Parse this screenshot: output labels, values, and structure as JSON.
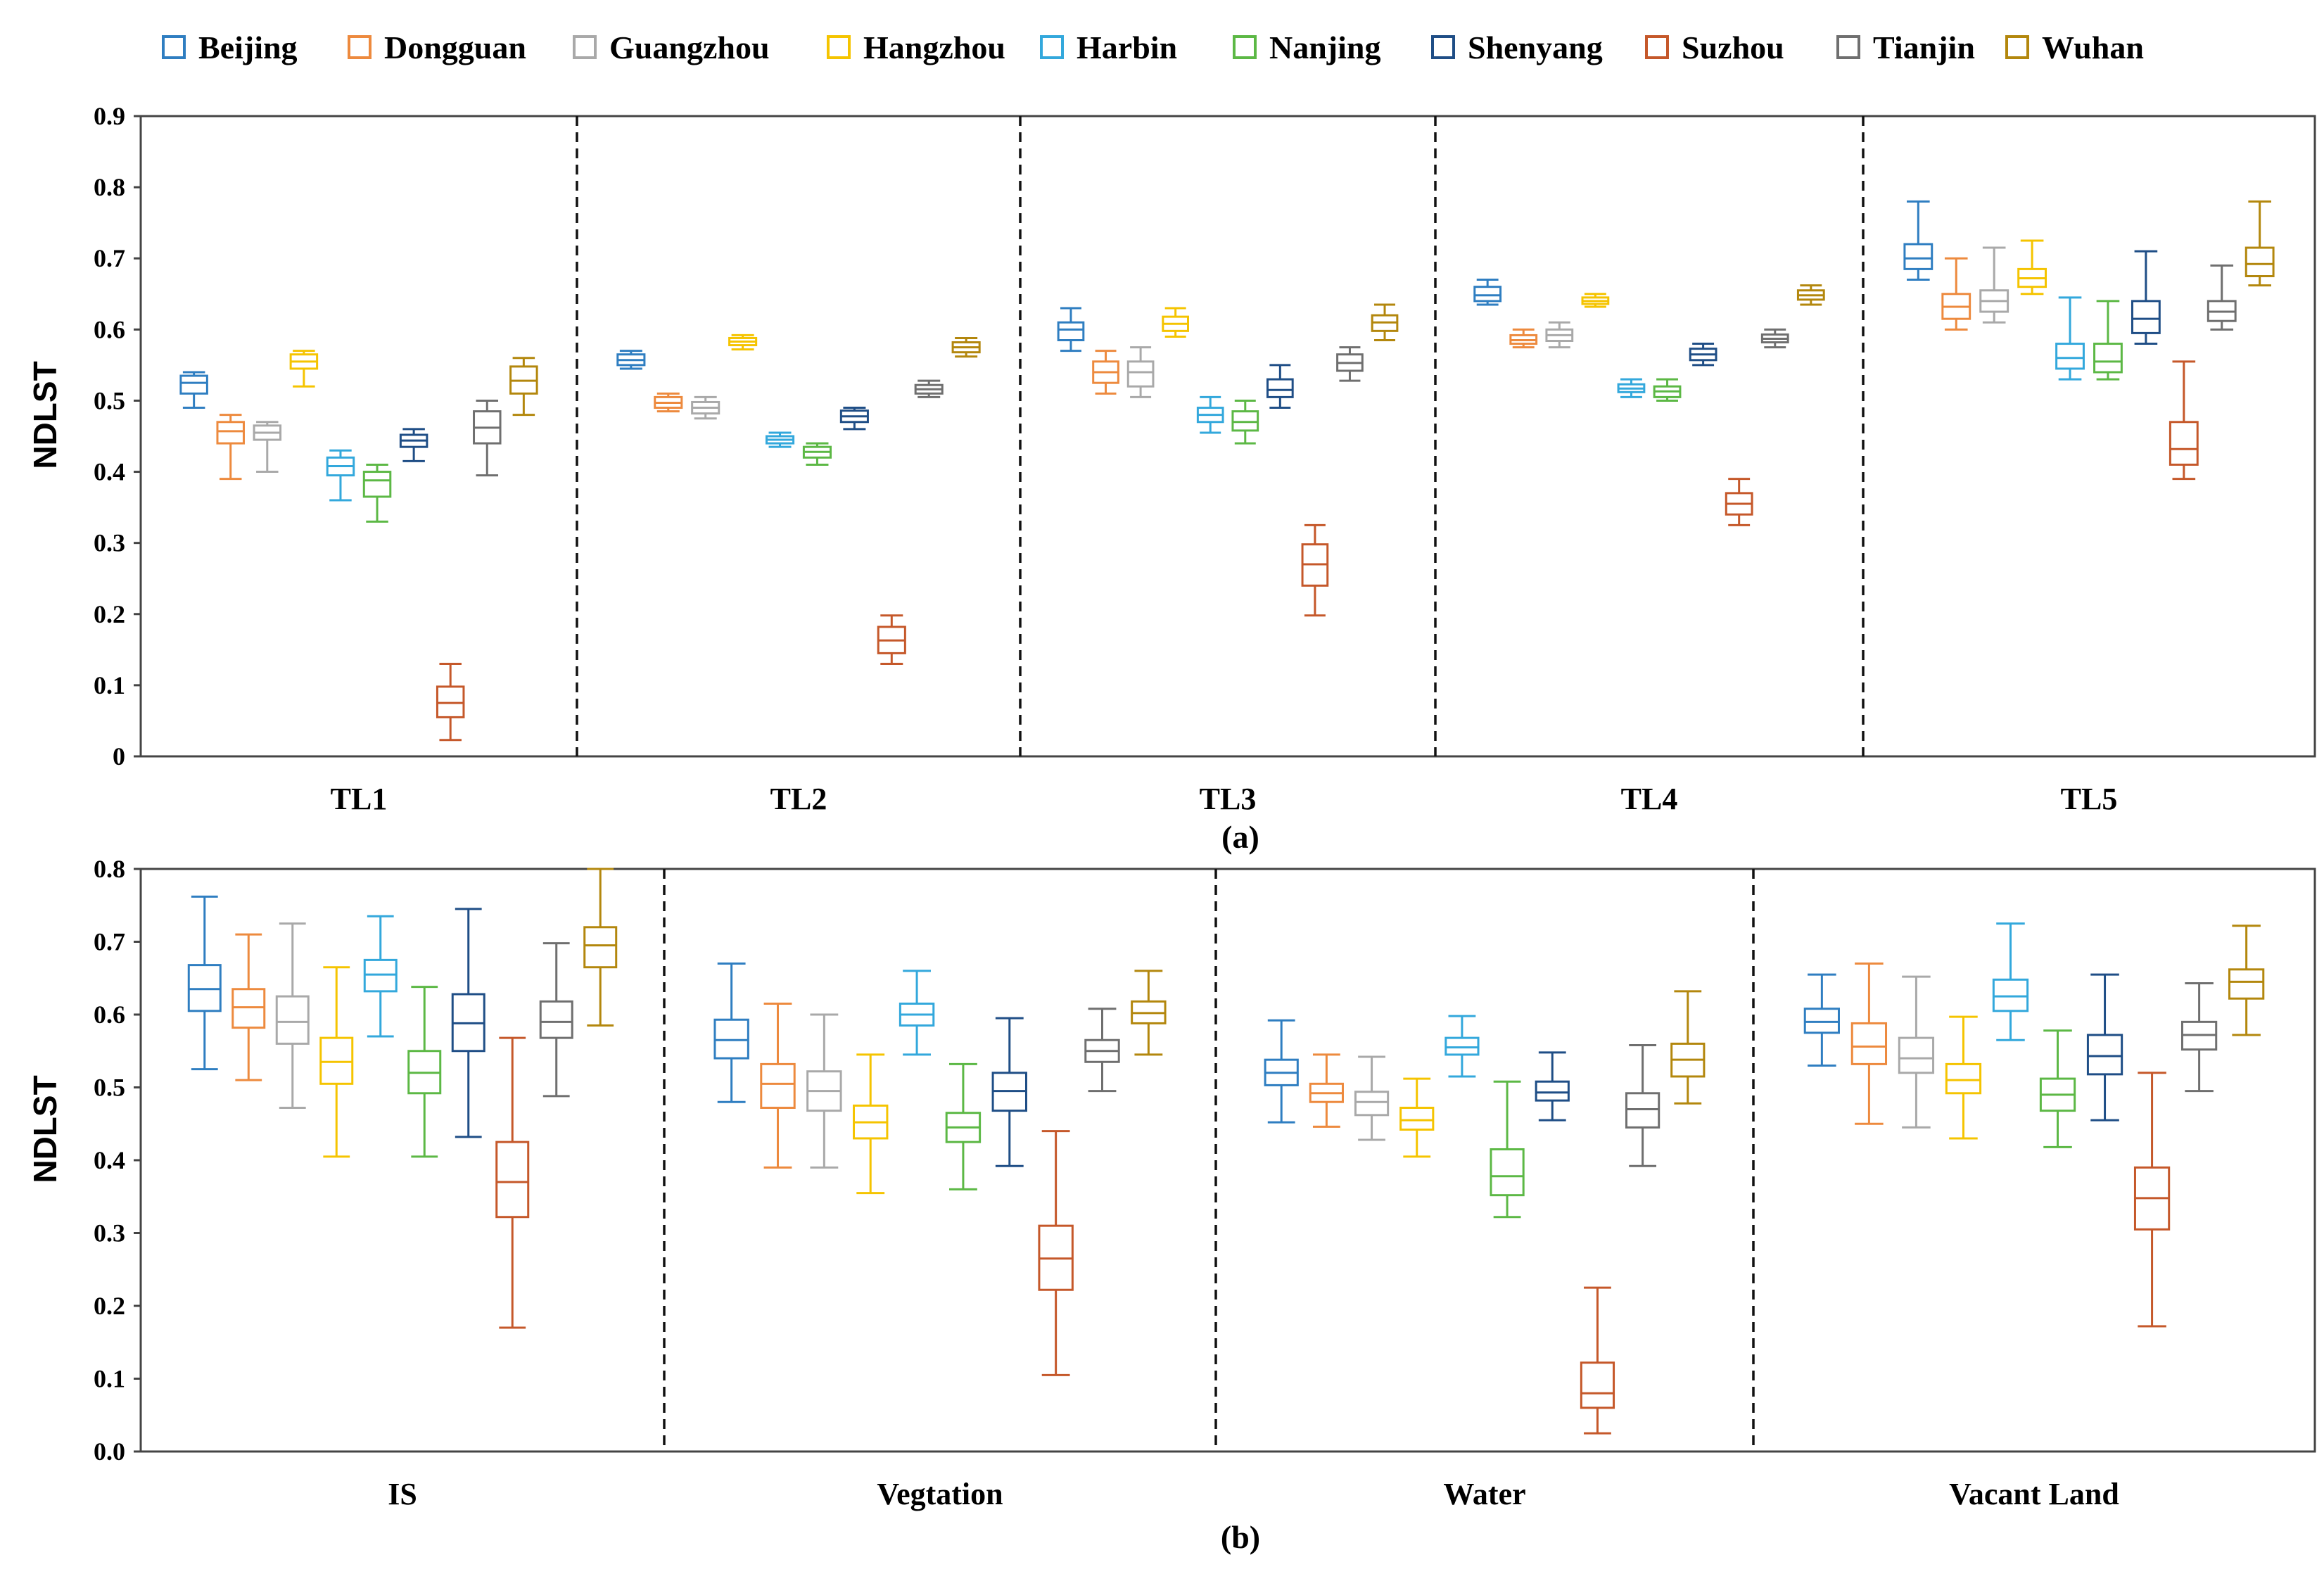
{
  "legend": {
    "cities": [
      "Beijing",
      "Dongguan",
      "Guangzhou",
      "Hangzhou",
      "Harbin",
      "Nanjing",
      "Shenyang",
      "Suzhou",
      "Tianjin",
      "Wuhan"
    ]
  },
  "colors": {
    "Beijing": "#2f7ec1",
    "Dongguan": "#ed8a3e",
    "Guangzhou": "#a9a9a9",
    "Hangzhou": "#f5c400",
    "Harbin": "#33a8dc",
    "Nanjing": "#5cb845",
    "Shenyang": "#1f4e86",
    "Suzhou": "#c5582a",
    "Tianjin": "#6f6f6f",
    "Wuhan": "#b3870d"
  },
  "chart_data": [
    {
      "type": "box",
      "panel_label": "(a)",
      "title": "",
      "xlabel": "",
      "ylabel": "NDLST",
      "ylim": [
        0,
        0.9
      ],
      "yticks": [
        "0",
        "0.1",
        "0.2",
        "0.3",
        "0.4",
        "0.5",
        "0.6",
        "0.7",
        "0.8",
        "0.9"
      ],
      "legend_position": "top",
      "categories": [
        "TL1",
        "TL2",
        "TL3",
        "TL4",
        "TL5"
      ],
      "series": [
        {
          "name": "Beijing",
          "boxes": [
            {
              "min": 0.49,
              "q1": 0.51,
              "median": 0.525,
              "q3": 0.535,
              "max": 0.54
            },
            {
              "min": 0.545,
              "q1": 0.55,
              "median": 0.557,
              "q3": 0.565,
              "max": 0.57
            },
            {
              "min": 0.57,
              "q1": 0.585,
              "median": 0.6,
              "q3": 0.61,
              "max": 0.63
            },
            {
              "min": 0.635,
              "q1": 0.64,
              "median": 0.648,
              "q3": 0.66,
              "max": 0.67
            },
            {
              "min": 0.67,
              "q1": 0.685,
              "median": 0.7,
              "q3": 0.72,
              "max": 0.78
            }
          ]
        },
        {
          "name": "Dongguan",
          "boxes": [
            {
              "min": 0.39,
              "q1": 0.44,
              "median": 0.457,
              "q3": 0.47,
              "max": 0.48
            },
            {
              "min": 0.485,
              "q1": 0.49,
              "median": 0.497,
              "q3": 0.505,
              "max": 0.51
            },
            {
              "min": 0.51,
              "q1": 0.525,
              "median": 0.54,
              "q3": 0.555,
              "max": 0.57
            },
            {
              "min": 0.575,
              "q1": 0.58,
              "median": 0.585,
              "q3": 0.592,
              "max": 0.6
            },
            {
              "min": 0.6,
              "q1": 0.615,
              "median": 0.632,
              "q3": 0.65,
              "max": 0.7
            }
          ]
        },
        {
          "name": "Guangzhou",
          "boxes": [
            {
              "min": 0.4,
              "q1": 0.445,
              "median": 0.455,
              "q3": 0.465,
              "max": 0.47
            },
            {
              "min": 0.475,
              "q1": 0.482,
              "median": 0.49,
              "q3": 0.498,
              "max": 0.505
            },
            {
              "min": 0.505,
              "q1": 0.52,
              "median": 0.54,
              "q3": 0.555,
              "max": 0.575
            },
            {
              "min": 0.575,
              "q1": 0.584,
              "median": 0.592,
              "q3": 0.6,
              "max": 0.61
            },
            {
              "min": 0.61,
              "q1": 0.625,
              "median": 0.64,
              "q3": 0.655,
              "max": 0.715
            }
          ]
        },
        {
          "name": "Hangzhou",
          "boxes": [
            {
              "min": 0.52,
              "q1": 0.545,
              "median": 0.555,
              "q3": 0.565,
              "max": 0.57
            },
            {
              "min": 0.572,
              "q1": 0.578,
              "median": 0.583,
              "q3": 0.588,
              "max": 0.592
            },
            {
              "min": 0.59,
              "q1": 0.598,
              "median": 0.608,
              "q3": 0.618,
              "max": 0.63
            },
            {
              "min": 0.632,
              "q1": 0.636,
              "median": 0.64,
              "q3": 0.645,
              "max": 0.65
            },
            {
              "min": 0.65,
              "q1": 0.66,
              "median": 0.672,
              "q3": 0.685,
              "max": 0.725
            }
          ]
        },
        {
          "name": "Harbin",
          "boxes": [
            {
              "min": 0.36,
              "q1": 0.395,
              "median": 0.408,
              "q3": 0.42,
              "max": 0.43
            },
            {
              "min": 0.435,
              "q1": 0.44,
              "median": 0.445,
              "q3": 0.45,
              "max": 0.455
            },
            {
              "min": 0.455,
              "q1": 0.47,
              "median": 0.48,
              "q3": 0.49,
              "max": 0.505
            },
            {
              "min": 0.505,
              "q1": 0.512,
              "median": 0.517,
              "q3": 0.523,
              "max": 0.53
            },
            {
              "min": 0.53,
              "q1": 0.545,
              "median": 0.56,
              "q3": 0.58,
              "max": 0.645
            }
          ]
        },
        {
          "name": "Nanjing",
          "boxes": [
            {
              "min": 0.33,
              "q1": 0.365,
              "median": 0.388,
              "q3": 0.4,
              "max": 0.41
            },
            {
              "min": 0.41,
              "q1": 0.42,
              "median": 0.428,
              "q3": 0.435,
              "max": 0.44
            },
            {
              "min": 0.44,
              "q1": 0.458,
              "median": 0.47,
              "q3": 0.485,
              "max": 0.5
            },
            {
              "min": 0.5,
              "q1": 0.505,
              "median": 0.513,
              "q3": 0.52,
              "max": 0.53
            },
            {
              "min": 0.53,
              "q1": 0.54,
              "median": 0.555,
              "q3": 0.58,
              "max": 0.64
            }
          ]
        },
        {
          "name": "Shenyang",
          "boxes": [
            {
              "min": 0.415,
              "q1": 0.435,
              "median": 0.444,
              "q3": 0.452,
              "max": 0.46
            },
            {
              "min": 0.46,
              "q1": 0.47,
              "median": 0.478,
              "q3": 0.486,
              "max": 0.49
            },
            {
              "min": 0.49,
              "q1": 0.505,
              "median": 0.515,
              "q3": 0.53,
              "max": 0.55
            },
            {
              "min": 0.55,
              "q1": 0.557,
              "median": 0.565,
              "q3": 0.573,
              "max": 0.58
            },
            {
              "min": 0.58,
              "q1": 0.595,
              "median": 0.615,
              "q3": 0.64,
              "max": 0.71
            }
          ]
        },
        {
          "name": "Suzhou",
          "boxes": [
            {
              "min": 0.023,
              "q1": 0.055,
              "median": 0.075,
              "q3": 0.098,
              "max": 0.13
            },
            {
              "min": 0.13,
              "q1": 0.145,
              "median": 0.163,
              "q3": 0.182,
              "max": 0.198
            },
            {
              "min": 0.198,
              "q1": 0.24,
              "median": 0.27,
              "q3": 0.298,
              "max": 0.325
            },
            {
              "min": 0.325,
              "q1": 0.34,
              "median": 0.355,
              "q3": 0.37,
              "max": 0.39
            },
            {
              "min": 0.39,
              "q1": 0.41,
              "median": 0.432,
              "q3": 0.47,
              "max": 0.555
            }
          ]
        },
        {
          "name": "Tianjin",
          "boxes": [
            {
              "min": 0.395,
              "q1": 0.44,
              "median": 0.462,
              "q3": 0.485,
              "max": 0.5
            },
            {
              "min": 0.505,
              "q1": 0.51,
              "median": 0.516,
              "q3": 0.522,
              "max": 0.528
            },
            {
              "min": 0.528,
              "q1": 0.542,
              "median": 0.553,
              "q3": 0.565,
              "max": 0.575
            },
            {
              "min": 0.575,
              "q1": 0.582,
              "median": 0.587,
              "q3": 0.593,
              "max": 0.6
            },
            {
              "min": 0.6,
              "q1": 0.612,
              "median": 0.625,
              "q3": 0.64,
              "max": 0.69
            }
          ]
        },
        {
          "name": "Wuhan",
          "boxes": [
            {
              "min": 0.48,
              "q1": 0.51,
              "median": 0.528,
              "q3": 0.548,
              "max": 0.56
            },
            {
              "min": 0.562,
              "q1": 0.568,
              "median": 0.575,
              "q3": 0.582,
              "max": 0.588
            },
            {
              "min": 0.585,
              "q1": 0.598,
              "median": 0.61,
              "q3": 0.62,
              "max": 0.635
            },
            {
              "min": 0.635,
              "q1": 0.642,
              "median": 0.648,
              "q3": 0.655,
              "max": 0.662
            },
            {
              "min": 0.662,
              "q1": 0.675,
              "median": 0.692,
              "q3": 0.715,
              "max": 0.78
            }
          ]
        }
      ]
    },
    {
      "type": "box",
      "panel_label": "(b)",
      "title": "",
      "xlabel": "",
      "ylabel": "NDLST",
      "ylim": [
        0,
        0.8
      ],
      "yticks": [
        "0.0",
        "0.1",
        "0.2",
        "0.3",
        "0.4",
        "0.5",
        "0.6",
        "0.7",
        "0.8"
      ],
      "legend_position": "top",
      "categories": [
        "IS",
        "Vegtation",
        "Water",
        "Vacant Land"
      ],
      "series": [
        {
          "name": "Beijing",
          "boxes": [
            {
              "min": 0.525,
              "q1": 0.605,
              "median": 0.635,
              "q3": 0.668,
              "max": 0.762
            },
            {
              "min": 0.48,
              "q1": 0.54,
              "median": 0.565,
              "q3": 0.593,
              "max": 0.67
            },
            {
              "min": 0.452,
              "q1": 0.503,
              "median": 0.52,
              "q3": 0.538,
              "max": 0.592
            },
            {
              "min": 0.53,
              "q1": 0.575,
              "median": 0.59,
              "q3": 0.608,
              "max": 0.655
            }
          ]
        },
        {
          "name": "Dongguan",
          "boxes": [
            {
              "min": 0.51,
              "q1": 0.582,
              "median": 0.61,
              "q3": 0.635,
              "max": 0.71
            },
            {
              "min": 0.39,
              "q1": 0.472,
              "median": 0.505,
              "q3": 0.532,
              "max": 0.615
            },
            {
              "min": 0.446,
              "q1": 0.48,
              "median": 0.492,
              "q3": 0.505,
              "max": 0.545
            },
            {
              "min": 0.45,
              "q1": 0.532,
              "median": 0.556,
              "q3": 0.588,
              "max": 0.67
            }
          ]
        },
        {
          "name": "Guangzhou",
          "boxes": [
            {
              "min": 0.472,
              "q1": 0.56,
              "median": 0.59,
              "q3": 0.625,
              "max": 0.725
            },
            {
              "min": 0.39,
              "q1": 0.468,
              "median": 0.495,
              "q3": 0.522,
              "max": 0.6
            },
            {
              "min": 0.428,
              "q1": 0.462,
              "median": 0.48,
              "q3": 0.494,
              "max": 0.542
            },
            {
              "min": 0.445,
              "q1": 0.52,
              "median": 0.54,
              "q3": 0.568,
              "max": 0.652
            }
          ]
        },
        {
          "name": "Hangzhou",
          "boxes": [
            {
              "min": 0.405,
              "q1": 0.505,
              "median": 0.535,
              "q3": 0.568,
              "max": 0.665
            },
            {
              "min": 0.355,
              "q1": 0.43,
              "median": 0.452,
              "q3": 0.475,
              "max": 0.545
            },
            {
              "min": 0.405,
              "q1": 0.442,
              "median": 0.455,
              "q3": 0.472,
              "max": 0.512
            },
            {
              "min": 0.43,
              "q1": 0.492,
              "median": 0.51,
              "q3": 0.532,
              "max": 0.597
            }
          ]
        },
        {
          "name": "Harbin",
          "boxes": [
            {
              "min": 0.57,
              "q1": 0.632,
              "median": 0.655,
              "q3": 0.675,
              "max": 0.735
            },
            {
              "min": 0.545,
              "q1": 0.585,
              "median": 0.6,
              "q3": 0.615,
              "max": 0.66
            },
            {
              "min": 0.515,
              "q1": 0.545,
              "median": 0.555,
              "q3": 0.568,
              "max": 0.598
            },
            {
              "min": 0.565,
              "q1": 0.605,
              "median": 0.625,
              "q3": 0.648,
              "max": 0.725
            }
          ]
        },
        {
          "name": "Nanjing",
          "boxes": [
            {
              "min": 0.405,
              "q1": 0.492,
              "median": 0.52,
              "q3": 0.55,
              "max": 0.638
            },
            {
              "min": 0.36,
              "q1": 0.425,
              "median": 0.445,
              "q3": 0.465,
              "max": 0.532
            },
            {
              "min": 0.322,
              "q1": 0.352,
              "median": 0.378,
              "q3": 0.415,
              "max": 0.508
            },
            {
              "min": 0.418,
              "q1": 0.468,
              "median": 0.49,
              "q3": 0.512,
              "max": 0.578
            }
          ]
        },
        {
          "name": "Shenyang",
          "boxes": [
            {
              "min": 0.432,
              "q1": 0.55,
              "median": 0.588,
              "q3": 0.628,
              "max": 0.745
            },
            {
              "min": 0.392,
              "q1": 0.468,
              "median": 0.495,
              "q3": 0.52,
              "max": 0.595
            },
            {
              "min": 0.455,
              "q1": 0.482,
              "median": 0.493,
              "q3": 0.508,
              "max": 0.548
            },
            {
              "min": 0.455,
              "q1": 0.518,
              "median": 0.543,
              "q3": 0.572,
              "max": 0.655
            }
          ]
        },
        {
          "name": "Suzhou",
          "boxes": [
            {
              "min": 0.17,
              "q1": 0.322,
              "median": 0.37,
              "q3": 0.425,
              "max": 0.568
            },
            {
              "min": 0.105,
              "q1": 0.222,
              "median": 0.265,
              "q3": 0.31,
              "max": 0.44
            },
            {
              "min": 0.025,
              "q1": 0.06,
              "median": 0.08,
              "q3": 0.122,
              "max": 0.225
            },
            {
              "min": 0.172,
              "q1": 0.305,
              "median": 0.348,
              "q3": 0.39,
              "max": 0.52
            }
          ]
        },
        {
          "name": "Tianjin",
          "boxes": [
            {
              "min": 0.488,
              "q1": 0.568,
              "median": 0.59,
              "q3": 0.618,
              "max": 0.698
            },
            {
              "min": 0.495,
              "q1": 0.535,
              "median": 0.55,
              "q3": 0.565,
              "max": 0.608
            },
            {
              "min": 0.392,
              "q1": 0.445,
              "median": 0.47,
              "q3": 0.492,
              "max": 0.558
            },
            {
              "min": 0.495,
              "q1": 0.552,
              "median": 0.572,
              "q3": 0.59,
              "max": 0.643
            }
          ]
        },
        {
          "name": "Wuhan",
          "boxes": [
            {
              "min": 0.585,
              "q1": 0.665,
              "median": 0.695,
              "q3": 0.72,
              "max": 0.8
            },
            {
              "min": 0.545,
              "q1": 0.588,
              "median": 0.602,
              "q3": 0.618,
              "max": 0.66
            },
            {
              "min": 0.478,
              "q1": 0.515,
              "median": 0.538,
              "q3": 0.56,
              "max": 0.632
            },
            {
              "min": 0.572,
              "q1": 0.622,
              "median": 0.645,
              "q3": 0.662,
              "max": 0.722
            }
          ]
        }
      ]
    }
  ]
}
